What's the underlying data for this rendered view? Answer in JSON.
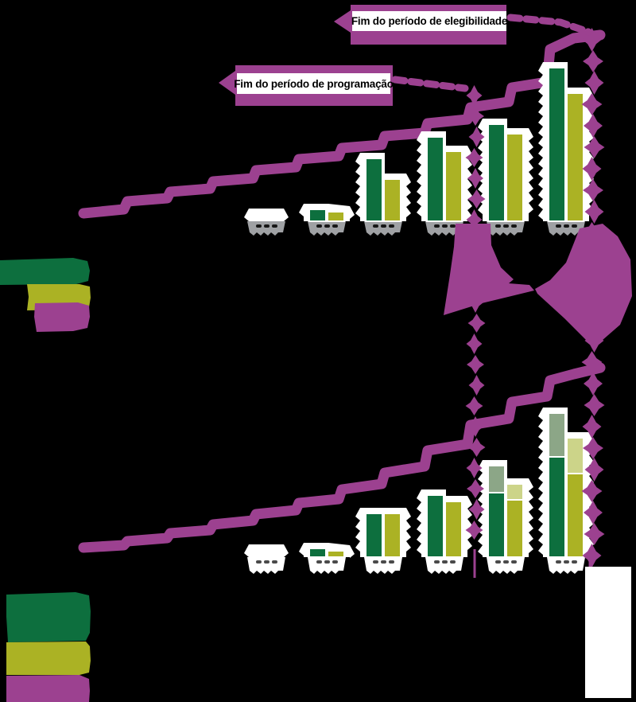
{
  "annotations": {
    "eligibility_label": "Fim do período de elegibilidade",
    "programming_label": "Fim do período de programação"
  },
  "colors": {
    "background": "#000000",
    "purple": "#9c4190",
    "dark_green": "#0d6f3e",
    "olive": "#abb224",
    "sage": "#8ca687",
    "light_olive": "#ccd489",
    "pedestal_gray": "#9fa1a4",
    "white": "#ffffff",
    "mark_dark": "#161616",
    "mark_gray": "#4a4a4a"
  },
  "legend_top": {
    "items": [
      {
        "swatch": "dark_green"
      },
      {
        "swatch": "olive"
      },
      {
        "swatch": "purple"
      }
    ]
  },
  "legend_bottom": {
    "items": [
      {
        "swatch": "dark_green"
      },
      {
        "swatch": "olive"
      },
      {
        "swatch": "purple"
      }
    ]
  },
  "chart_data": [
    {
      "type": "bar",
      "title": "",
      "categories": [
        "",
        "",
        "",
        "",
        "",
        ""
      ],
      "ylim": [
        0,
        120
      ],
      "grid": false,
      "legend_position": "left-below",
      "series": [
        {
          "name": "dark-green-bars",
          "color": "dark_green",
          "values": [
            0,
            7.5,
            39.5,
            53,
            61,
            96.5
          ]
        },
        {
          "name": "olive-bars",
          "color": "olive",
          "values": [
            0,
            6,
            26.5,
            44,
            55,
            80.5
          ]
        }
      ],
      "line": {
        "name": "cumulative-stepped-line",
        "color": "purple",
        "points": [
          [
            0,
            5
          ],
          [
            7.8,
            7.5
          ],
          [
            8.5,
            12.5
          ],
          [
            16.2,
            14.5
          ],
          [
            16.8,
            18.5
          ],
          [
            24.5,
            20.5
          ],
          [
            25.1,
            25
          ],
          [
            32.8,
            27
          ],
          [
            33.4,
            32
          ],
          [
            41.1,
            34
          ],
          [
            41.7,
            39
          ],
          [
            49.4,
            41
          ],
          [
            50,
            46
          ],
          [
            57.7,
            48
          ],
          [
            58.3,
            53.5
          ],
          [
            66,
            55.5
          ],
          [
            66.6,
            61.5
          ],
          [
            74.3,
            64
          ],
          [
            74.9,
            71.5
          ],
          [
            82.3,
            75
          ],
          [
            82.9,
            84
          ],
          [
            89.7,
            87.5
          ],
          [
            90.3,
            108
          ],
          [
            94.9,
            115
          ],
          [
            100,
            117
          ]
        ]
      },
      "markers": [
        {
          "x_pct": 75.8,
          "label": "Fim do período de programação"
        },
        {
          "x_pct": 98.5,
          "label": "Fim do período de elegibilidade"
        }
      ]
    },
    {
      "type": "bar",
      "title": "",
      "categories": [
        "",
        "",
        "",
        "",
        "",
        ""
      ],
      "ylim": [
        0,
        120
      ],
      "grid": false,
      "legend_position": "left-below",
      "series": [
        {
          "name": "dark-green-bars",
          "color": "dark_green",
          "values": [
            0,
            5.5,
            27.5,
            39,
            40.5,
            63
          ]
        },
        {
          "name": "sage-top-segments",
          "color": "sage",
          "values": [
            0,
            0,
            0,
            0,
            17,
            27.5
          ],
          "stack_on": 0
        },
        {
          "name": "olive-bars",
          "color": "olive",
          "values": [
            0,
            4,
            27.5,
            35,
            36,
            52.5
          ]
        },
        {
          "name": "light-olive-top-segments",
          "color": "light_olive",
          "values": [
            0,
            0,
            0,
            0,
            10,
            22.5
          ],
          "stack_on": 2
        }
      ],
      "line": {
        "name": "cumulative-stepped-line",
        "color": "purple",
        "points": [
          [
            0,
            6
          ],
          [
            7.8,
            7.5
          ],
          [
            8.5,
            10
          ],
          [
            16.2,
            12
          ],
          [
            16.8,
            15
          ],
          [
            24.5,
            17
          ],
          [
            25.1,
            20.5
          ],
          [
            32.8,
            23
          ],
          [
            33.4,
            27
          ],
          [
            41.1,
            29.5
          ],
          [
            41.7,
            34
          ],
          [
            49.4,
            36.5
          ],
          [
            50,
            42.5
          ],
          [
            57.7,
            46
          ],
          [
            58.3,
            53
          ],
          [
            66,
            57
          ],
          [
            66.6,
            67
          ],
          [
            74.3,
            71
          ],
          [
            74.9,
            83
          ],
          [
            82.3,
            87
          ],
          [
            82.9,
            97.5
          ],
          [
            89.7,
            101
          ],
          [
            90.3,
            111
          ],
          [
            94.9,
            115
          ],
          [
            100,
            119
          ]
        ]
      },
      "markers": [
        {
          "x_pct": 75.8,
          "label": "Fim do período de programação"
        },
        {
          "x_pct": 98.5,
          "label": "Fim do período de elegibilidade"
        }
      ]
    }
  ]
}
